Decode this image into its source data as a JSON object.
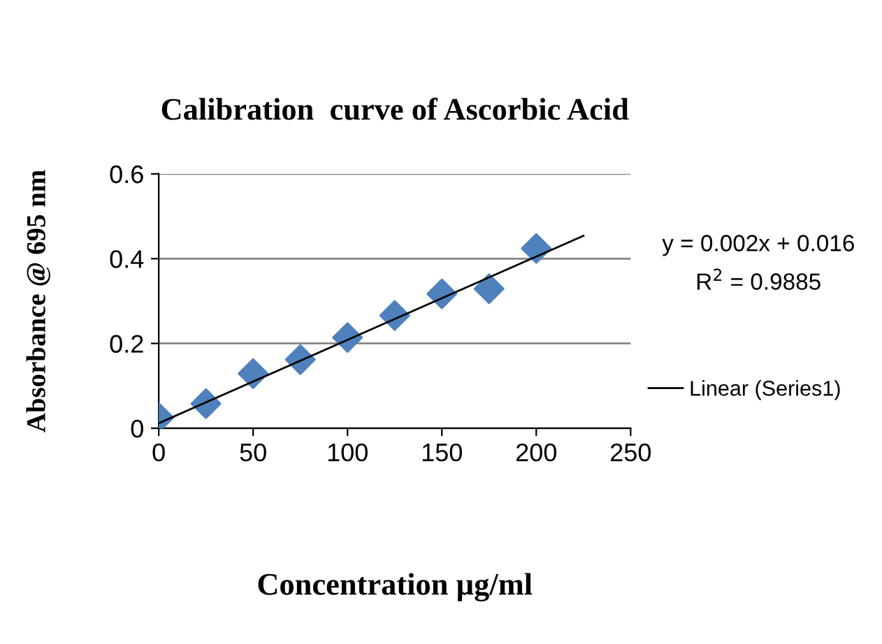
{
  "chart_data": {
    "type": "scatter",
    "title": "Calibration  curve of Ascorbic Acid",
    "xlabel": "Concentration µg/ml",
    "ylabel": "Absorbance @ 695 nm",
    "series": [
      {
        "color": "#4f81bd",
        "marker": "diamond",
        "x": [
          0,
          25,
          50,
          75,
          100,
          125,
          150,
          175,
          200
        ],
        "values": [
          0.025,
          0.058,
          0.129,
          0.162,
          0.214,
          0.266,
          0.317,
          0.329,
          0.424
        ]
      },
      {
        "type": "line",
        "name": "Linear (Series1)",
        "color": "#000000",
        "line_style": "solid",
        "x": [
          0,
          225
        ],
        "values": [
          0.012,
          0.454
        ]
      }
    ],
    "xlim": [
      0,
      250
    ],
    "xticks": [
      0,
      50,
      100,
      150,
      200,
      250
    ],
    "ylim": [
      0,
      0.6
    ],
    "yticks": [
      0,
      0.2,
      0.4,
      0.6
    ],
    "grid": "y",
    "legend": "right",
    "annotations": [
      "y = 0.002x + 0.016",
      "R$^{2}$ = 0.9885"
    ]
  }
}
